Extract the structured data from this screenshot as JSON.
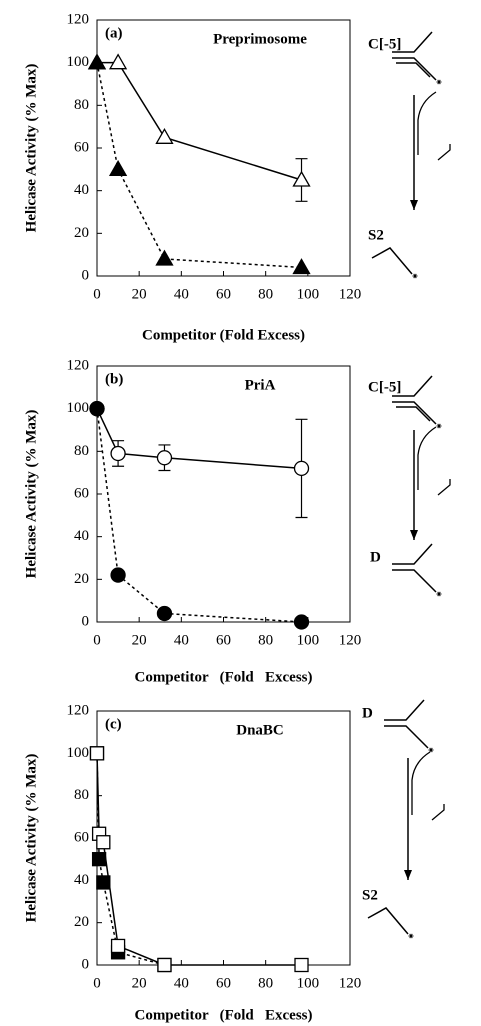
{
  "chart_data": [
    {
      "type": "line",
      "panel_label": "(a)",
      "title": "Preprimosome",
      "x_label": "Competitor (Fold Excess)",
      "y_label": "Helicase Activity (% Max)",
      "xlim": [
        0,
        120
      ],
      "xticks": [
        0,
        20,
        40,
        60,
        80,
        100,
        120
      ],
      "ylim": [
        0,
        120
      ],
      "yticks": [
        0,
        20,
        40,
        60,
        80,
        100,
        120
      ],
      "schematic_labels": [
        "C[-5]",
        "S2"
      ],
      "series": [
        {
          "color": "#000000",
          "marker": "triangle",
          "filled": false,
          "dashed": false,
          "x": [
            0,
            10,
            32,
            97
          ],
          "values": [
            100,
            100,
            65,
            45
          ],
          "errors": [
            null,
            null,
            null,
            10
          ]
        },
        {
          "color": "#000000",
          "marker": "triangle",
          "filled": true,
          "dashed": true,
          "x": [
            0,
            10,
            32,
            97
          ],
          "values": [
            100,
            50,
            8,
            4
          ]
        }
      ]
    },
    {
      "type": "line",
      "panel_label": "(b)",
      "title": "PriA",
      "x_label": "Competitor   (Fold   Excess)",
      "y_label": "Helicase Activity (% Max)",
      "xlim": [
        0,
        120
      ],
      "xticks": [
        0,
        20,
        40,
        60,
        80,
        100,
        120
      ],
      "ylim": [
        0,
        120
      ],
      "yticks": [
        0,
        20,
        40,
        60,
        80,
        100,
        120
      ],
      "schematic_labels": [
        "C[-5]",
        "D"
      ],
      "series": [
        {
          "color": "#000000",
          "marker": "circle",
          "filled": false,
          "dashed": false,
          "x": [
            0,
            10,
            32,
            97
          ],
          "values": [
            100,
            79,
            77,
            72
          ],
          "errors": [
            null,
            6,
            6,
            23
          ]
        },
        {
          "color": "#000000",
          "marker": "circle",
          "filled": true,
          "dashed": true,
          "x": [
            0,
            10,
            32,
            97
          ],
          "values": [
            100,
            22,
            4,
            0
          ]
        }
      ]
    },
    {
      "type": "line",
      "panel_label": "(c)",
      "title": "DnaBC",
      "x_label": "Competitor   (Fold   Excess)",
      "y_label": "Helicase Activity (% Max)",
      "xlim": [
        0,
        120
      ],
      "xticks": [
        0,
        20,
        40,
        60,
        80,
        100,
        120
      ],
      "ylim": [
        0,
        120
      ],
      "yticks": [
        0,
        20,
        40,
        60,
        80,
        100,
        120
      ],
      "schematic_labels": [
        "D",
        "S2"
      ],
      "series": [
        {
          "color": "#000000",
          "marker": "square",
          "filled": true,
          "dashed": true,
          "x": [
            0,
            1,
            3,
            10,
            32
          ],
          "values": [
            100,
            50,
            39,
            6,
            0
          ]
        },
        {
          "color": "#000000",
          "marker": "square",
          "filled": false,
          "dashed": false,
          "x": [
            0,
            1,
            3,
            10,
            32,
            97
          ],
          "values": [
            100,
            62,
            58,
            9,
            0,
            0
          ]
        }
      ]
    }
  ]
}
